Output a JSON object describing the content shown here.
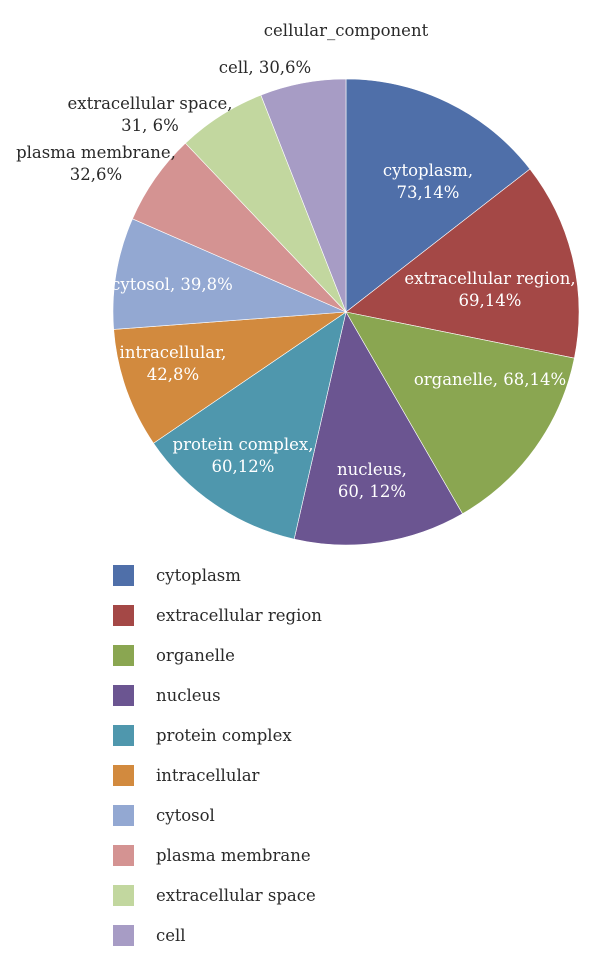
{
  "chart_data": {
    "type": "pie",
    "title": "cellular_component",
    "legend_position": "bottom",
    "slices": [
      {
        "name": "cytoplasm",
        "value": 73,
        "percent": 14,
        "color": "#4f6fa9",
        "label_lines": [
          "cytoplasm,",
          "73,14%"
        ],
        "label_inside": true
      },
      {
        "name": "extracellular region",
        "value": 69,
        "percent": 14,
        "color": "#a44846",
        "label_lines": [
          "extracellular region,",
          "69,14%"
        ],
        "label_inside": true
      },
      {
        "name": "organelle",
        "value": 68,
        "percent": 14,
        "color": "#8aa651",
        "label_lines": [
          "organelle, 68,14%"
        ],
        "label_inside": true
      },
      {
        "name": "nucleus",
        "value": 60,
        "percent": 12,
        "color": "#6b5591",
        "label_lines": [
          "nucleus,",
          "60, 12%"
        ],
        "label_inside": true
      },
      {
        "name": "protein complex",
        "value": 60,
        "percent": 12,
        "color": "#4f97ad",
        "label_lines": [
          "protein complex,",
          "60,12%"
        ],
        "label_inside": true
      },
      {
        "name": "intracellular",
        "value": 42,
        "percent": 8,
        "color": "#d28a3e",
        "label_lines": [
          "intracellular,",
          "42,8%"
        ],
        "label_inside": true
      },
      {
        "name": "cytosol",
        "value": 39,
        "percent": 8,
        "color": "#93a8d2",
        "label_lines": [
          "cytosol, 39,8%"
        ],
        "label_inside": true
      },
      {
        "name": "plasma membrane",
        "value": 32,
        "percent": 6,
        "color": "#d49392",
        "label_lines": [
          "plasma membrane,",
          "32,6%"
        ],
        "label_inside": false
      },
      {
        "name": "extracellular space",
        "value": 31,
        "percent": 6,
        "color": "#c2d79f",
        "label_lines": [
          "extracellular space,",
          "31, 6%"
        ],
        "label_inside": false
      },
      {
        "name": "cell",
        "value": 30,
        "percent": 6,
        "color": "#a79cc5",
        "label_lines": [
          "cell, 30,6%"
        ],
        "label_inside": false
      }
    ]
  }
}
